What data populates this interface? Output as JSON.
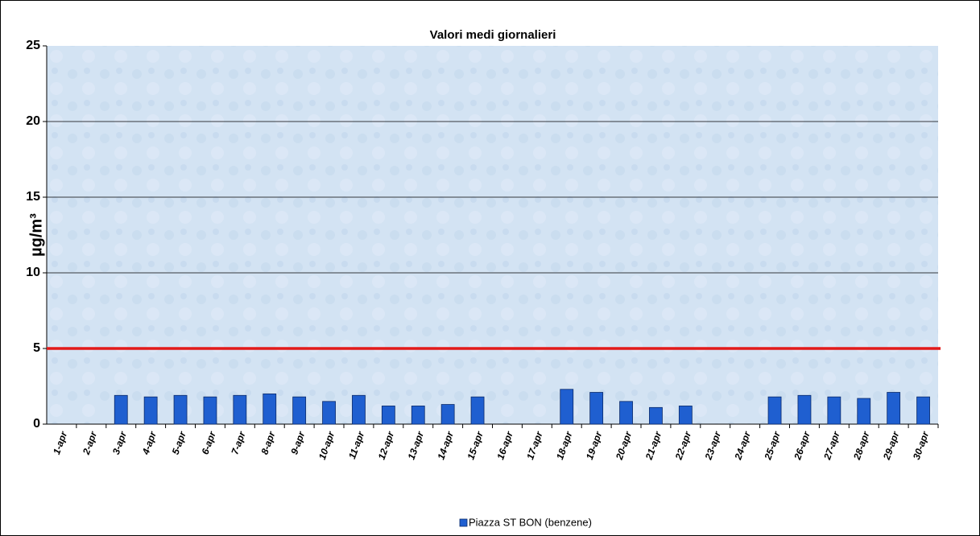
{
  "chart_data": {
    "type": "bar",
    "title": "Valori medi giornalieri",
    "y_label": "µg/m³",
    "categories": [
      "1-apr",
      "2-apr",
      "3-apr",
      "4-apr",
      "5-apr",
      "6-apr",
      "7-apr",
      "8-apr",
      "9-apr",
      "10-apr",
      "11-apr",
      "12-apr",
      "13-apr",
      "14-apr",
      "15-apr",
      "16-apr",
      "17-apr",
      "18-apr",
      "19-apr",
      "20-apr",
      "21-apr",
      "22-apr",
      "23-apr",
      "24-apr",
      "25-apr",
      "26-apr",
      "27-apr",
      "28-apr",
      "29-apr",
      "30-apr"
    ],
    "series": [
      {
        "name": "Piazza ST BON (benzene)",
        "color": "#1f5fd0",
        "values": [
          null,
          null,
          1.9,
          1.8,
          1.9,
          1.8,
          1.9,
          2.0,
          1.8,
          1.5,
          1.9,
          1.2,
          1.2,
          1.3,
          1.8,
          null,
          null,
          2.3,
          2.1,
          1.5,
          1.1,
          1.2,
          null,
          null,
          1.8,
          1.9,
          1.8,
          1.7,
          2.1,
          1.8
        ]
      }
    ],
    "threshold": 5,
    "threshold_color": "#e31a1a",
    "ylim": [
      0,
      25
    ],
    "yticks": [
      0,
      5,
      10,
      15,
      20,
      25
    ],
    "grid": true,
    "legend": "bottom"
  }
}
